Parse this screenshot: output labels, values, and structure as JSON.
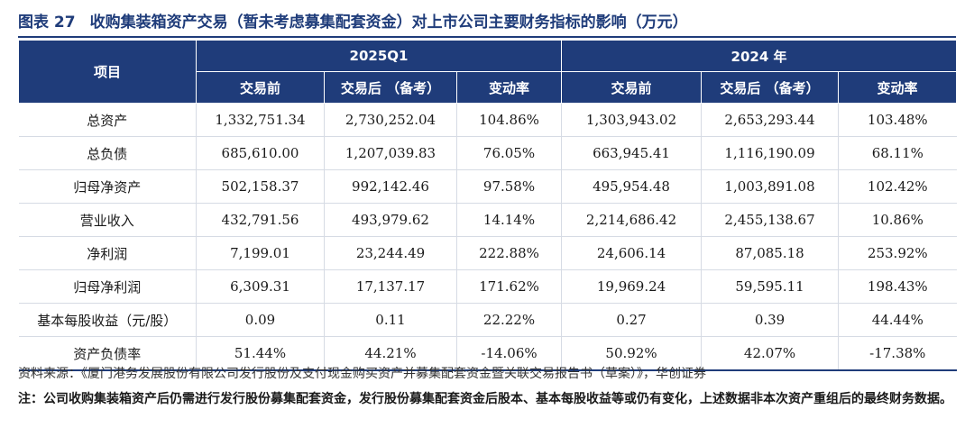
{
  "title": {
    "label": "图表 27",
    "text": "收购集装箱资产交易（暂未考虑募集配套资金）对上市公司主要财务指标的影响（万元）"
  },
  "table": {
    "item_header": "项目",
    "group_headers": [
      "2025Q1",
      "2024 年"
    ],
    "sub_headers": [
      "交易前",
      "交易后 （备考）",
      "变动率",
      "交易前",
      "交易后 （备考）",
      "变动率"
    ],
    "rows": [
      {
        "label": "总资产",
        "values": [
          "1,332,751.34",
          "2,730,252.04",
          "104.86%",
          "1,303,943.02",
          "2,653,293.44",
          "103.48%"
        ]
      },
      {
        "label": "总负债",
        "values": [
          "685,610.00",
          "1,207,039.83",
          "76.05%",
          "663,945.41",
          "1,116,190.09",
          "68.11%"
        ]
      },
      {
        "label": "归母净资产",
        "values": [
          "502,158.37",
          "992,142.46",
          "97.58%",
          "495,954.48",
          "1,003,891.08",
          "102.42%"
        ]
      },
      {
        "label": "营业收入",
        "values": [
          "432,791.56",
          "493,979.62",
          "14.14%",
          "2,214,686.42",
          "2,455,138.67",
          "10.86%"
        ]
      },
      {
        "label": "净利润",
        "values": [
          "7,199.01",
          "23,244.49",
          "222.88%",
          "24,606.14",
          "87,085.18",
          "253.92%"
        ]
      },
      {
        "label": "归母净利润",
        "values": [
          "6,309.31",
          "17,137.17",
          "171.62%",
          "19,969.24",
          "59,595.11",
          "198.43%"
        ]
      },
      {
        "label": "基本每股收益（元/股）",
        "values": [
          "0.09",
          "0.11",
          "22.22%",
          "0.27",
          "0.39",
          "44.44%"
        ]
      },
      {
        "label": "资产负债率",
        "values": [
          "51.44%",
          "44.21%",
          "-14.06%",
          "50.92%",
          "42.07%",
          "-17.38%"
        ]
      }
    ]
  },
  "source": "资料来源：《厦门港务发展股份有限公司发行股份及支付现金购买资产并募集配套资金暨关联交易报告书（草案）》，华创证券",
  "note": "注：公司收购集装箱资产后仍需进行发行股份募集配套资金，发行股份募集配套资金后股本、基本每股收益等或仍有变化，上述数据非本次资产重组后的最终财务数据。",
  "colors": {
    "header_bg": "#1f3c7a",
    "title": "#1f3c7a"
  }
}
